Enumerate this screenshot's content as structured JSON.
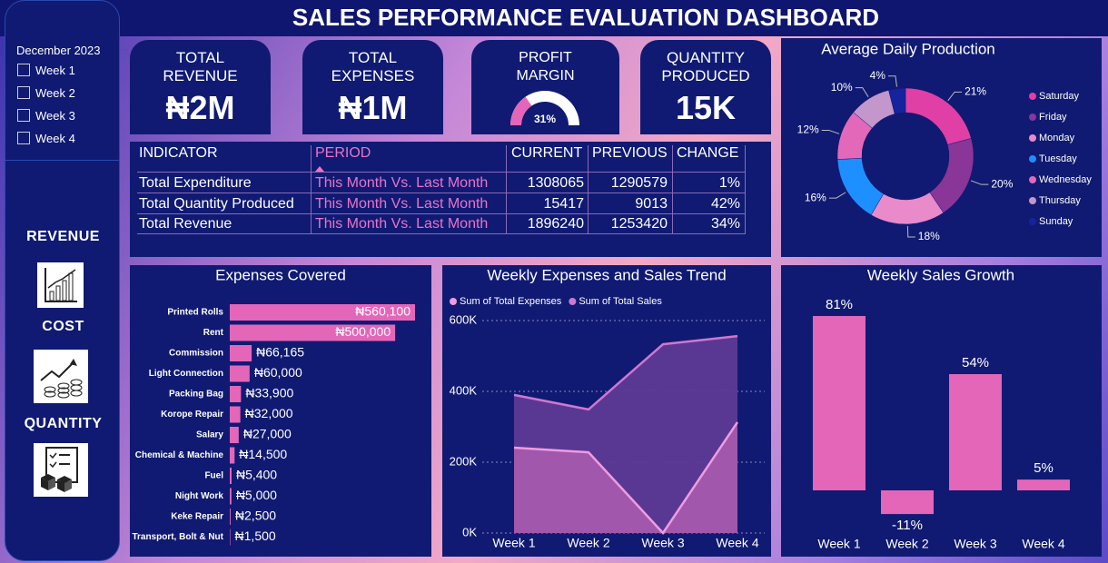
{
  "title": "SALES PERFORMANCE EVALUATION DASHBOARD",
  "slicer": {
    "title": "December 2023",
    "options": [
      "Week 1",
      "Week 2",
      "Week 3",
      "Week 4"
    ]
  },
  "sidebar": [
    "REVENUE",
    "COST",
    "QUANTITY"
  ],
  "kpis": [
    {
      "title": "TOTAL REVENUE",
      "value": "₦2M"
    },
    {
      "title": "TOTAL EXPENSES",
      "value": "₦1M"
    },
    {
      "title": "PROFIT MARGIN",
      "value": 31,
      "value_label": "31%"
    },
    {
      "title": "QUANTITY PRODUCED",
      "value": "15K"
    }
  ],
  "table": {
    "headers": [
      "INDICATOR",
      "PERIOD",
      "CURRENT",
      "PREVIOUS",
      "CHANGE"
    ],
    "rows": [
      [
        "Total Expenditure",
        "This Month Vs. Last Month",
        1308065,
        1290579,
        "1%"
      ],
      [
        "Total Quantity Produced",
        "This Month Vs. Last Month",
        15417,
        9013,
        "42%"
      ],
      [
        "Total Revenue",
        "This Month Vs. Last Month",
        1896240,
        1253420,
        "34%"
      ]
    ]
  },
  "chart_data": [
    {
      "type": "donut",
      "title": "Average Daily Production",
      "categories": [
        "Saturday",
        "Friday",
        "Monday",
        "Tuesday",
        "Wednesday",
        "Thursday",
        "Sunday"
      ],
      "values": [
        21,
        20,
        18,
        16,
        12,
        10,
        4
      ],
      "value_labels": [
        "21%",
        "20%",
        "18%",
        "16%",
        "12%",
        "10%",
        "4%"
      ],
      "colors": [
        "#e03fa6",
        "#8a3598",
        "#e98acb",
        "#1e8fff",
        "#e468b9",
        "#c396cc",
        "#16239e"
      ],
      "legend": "right"
    },
    {
      "type": "hbar",
      "title": "Expenses Covered",
      "categories": [
        "Printed Rolls",
        "Rent",
        "Commission",
        "Light Connection",
        "Packing Bag",
        "Korope Repair",
        "Salary",
        "Chemical & Machine",
        "Fuel",
        "Night Work",
        "Keke Repair",
        "Transport, Bolt & Nut"
      ],
      "values": [
        560100,
        500000,
        66165,
        60000,
        33900,
        32000,
        27000,
        14500,
        5400,
        5000,
        2500,
        1500
      ],
      "value_labels": [
        "₦560,100",
        "₦500,000",
        "₦66,165",
        "₦60,000",
        "₦33,900",
        "₦32,000",
        "₦27,000",
        "₦14,500",
        "₦5,400",
        "₦5,000",
        "₦2,500",
        "₦1,500"
      ],
      "color": "#e466b9"
    },
    {
      "type": "area",
      "title": "Weekly Expenses and Sales Trend",
      "categories": [
        "Week 1",
        "Week 2",
        "Week 3",
        "Week 4"
      ],
      "series": [
        {
          "name": "Sum of Total Expenses",
          "color": "#f09ce0",
          "values": [
            241000,
            228000,
            0,
            313000
          ]
        },
        {
          "name": "Sum of Total Sales",
          "color": "#d077d0",
          "values": [
            390000,
            349000,
            533000,
            556000
          ]
        }
      ],
      "ylim": [
        0,
        600000
      ],
      "yticks": [
        {
          "value": 0,
          "label": "0K"
        },
        {
          "value": 200000,
          "label": "200K"
        },
        {
          "value": 400000,
          "label": "400K"
        },
        {
          "value": 600000,
          "label": "600K"
        }
      ],
      "grid": true
    },
    {
      "type": "bar",
      "title": "Weekly Sales Growth",
      "categories": [
        "Week 1",
        "Week 2",
        "Week 3",
        "Week 4"
      ],
      "values": [
        81,
        -11,
        54,
        5
      ],
      "value_labels": [
        "81%",
        "-11%",
        "54%",
        "5%"
      ],
      "color": "#e466b9"
    }
  ]
}
